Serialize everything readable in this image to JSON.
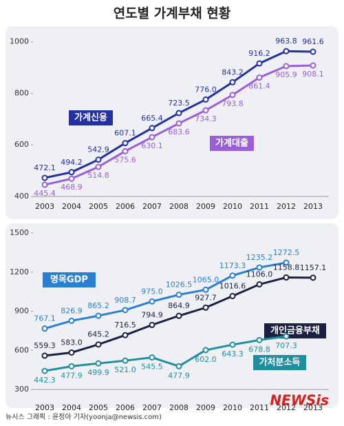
{
  "title": "연도별 가계부채 현황",
  "chart_data": [
    {
      "type": "line",
      "categories": [
        "2003",
        "2004",
        "2005",
        "2006",
        "2007",
        "2008",
        "2009",
        "2010",
        "2011",
        "2012",
        "2013"
      ],
      "ylim": [
        400,
        1050
      ],
      "yticks": [
        400,
        600,
        800,
        1000
      ],
      "grid": false,
      "series": [
        {
          "name": "가계신용",
          "color": "#23309e",
          "values": [
            472.1,
            494.2,
            542.9,
            607.1,
            665.4,
            723.5,
            776.0,
            843.2,
            916.2,
            963.8,
            961.6
          ],
          "value_labels": [
            "472.1",
            "494.2",
            "542.9",
            "607.1",
            "665.4",
            "723.5",
            "776.0",
            "843.2",
            "916.2",
            "963.8",
            "961.6"
          ]
        },
        {
          "name": "가계대출",
          "color": "#9a5fd8",
          "values": [
            445.4,
            468.9,
            514.8,
            575.6,
            630.1,
            683.6,
            734.3,
            793.8,
            861.4,
            905.9,
            908.1
          ],
          "value_labels": [
            "445.4",
            "468.9",
            "514.8",
            "575.6",
            "630.1",
            "683.6",
            "734.3",
            "793.8",
            "861.4",
            "905.9",
            "908.1"
          ]
        }
      ]
    },
    {
      "type": "line",
      "categories": [
        "2003",
        "2004",
        "2005",
        "2006",
        "2007",
        "2008",
        "2009",
        "2010",
        "2011",
        "2012",
        "2013"
      ],
      "ylim": [
        300,
        1500
      ],
      "yticks": [
        300,
        600,
        900,
        1200,
        1500
      ],
      "grid": false,
      "series": [
        {
          "name": "명목GDP",
          "color": "#2a7fd0",
          "values": [
            767.1,
            826.9,
            865.2,
            908.7,
            975.0,
            1026.5,
            1065.0,
            1173.3,
            1235.2,
            1272.5,
            null
          ],
          "value_labels": [
            "767.1",
            "826.9",
            "865.2",
            "908.7",
            "975.0",
            "1026.5",
            "1065.0",
            "1173.3",
            "1235.2",
            "1272.5",
            null
          ]
        },
        {
          "name": "개인금융부채",
          "color": "#1b2040",
          "values": [
            559.3,
            583.0,
            645.2,
            716.5,
            794.9,
            864.9,
            927.7,
            1016.6,
            1106.0,
            1158.8,
            1157.1
          ],
          "value_labels": [
            "559.3",
            "583.0",
            "645.2",
            "716.5",
            "794.9",
            "864.9",
            "927.7",
            "1016.6",
            "1106.0",
            "1158.8",
            "1157.1"
          ]
        },
        {
          "name": "가처분소득",
          "color": "#1f8f9f",
          "values": [
            442.3,
            477.9,
            499.9,
            521.0,
            545.5,
            477.9,
            602.0,
            643.3,
            678.8,
            707.3,
            null
          ],
          "value_labels": [
            "442.3",
            "477.9",
            "499.9",
            "521.0",
            "545.5",
            "477.9",
            "602.0",
            "643.3",
            "678.8",
            "707.3",
            null
          ]
        }
      ]
    }
  ],
  "footer": "뉴시스 그래픽 : 윤정아 기자(yoonja@newsis.com)",
  "logo": "NEWSis"
}
